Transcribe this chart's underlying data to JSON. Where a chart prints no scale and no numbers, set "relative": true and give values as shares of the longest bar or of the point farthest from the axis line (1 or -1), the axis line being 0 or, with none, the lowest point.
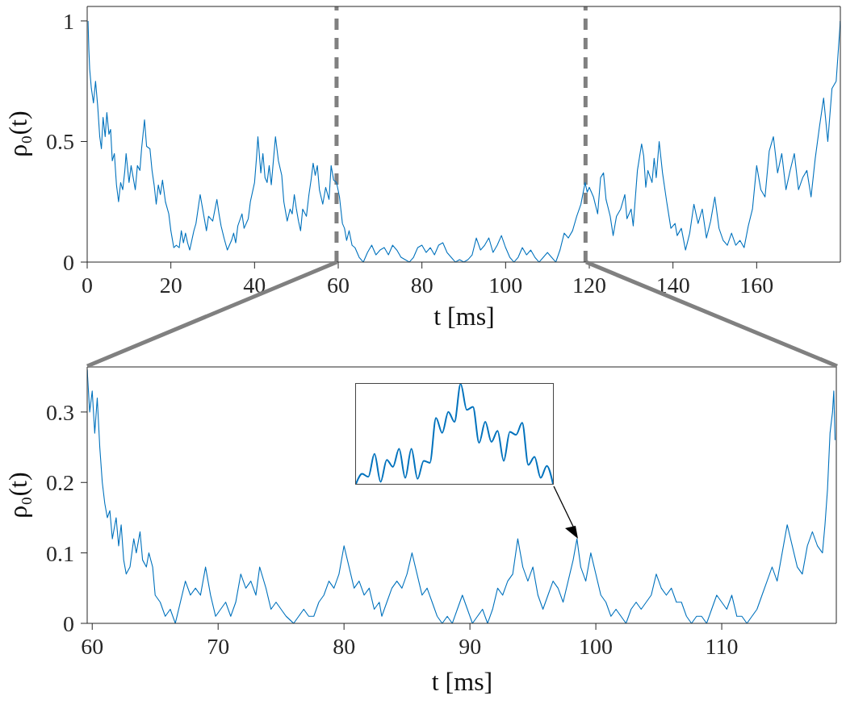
{
  "chart_data": [
    {
      "type": "line",
      "xlabel": "t [ms]",
      "ylabel": "ρ₀(t)",
      "xlim": [
        0,
        180
      ],
      "xticks": [
        0,
        20,
        40,
        60,
        80,
        100,
        120,
        140,
        160
      ],
      "ylim": [
        0,
        1.06
      ],
      "yticks": [
        0,
        0.5,
        1
      ],
      "ref_lines": [
        {
          "axis": "x",
          "value": 59.6,
          "color": "#808080",
          "line_style": "dashed"
        },
        {
          "axis": "x",
          "value": 119.1,
          "color": "#808080",
          "line_style": "dashed"
        }
      ],
      "series": [
        {
          "color": "#0072bd",
          "x": [
            0.2,
            0.4,
            0.6,
            1,
            1.5,
            2,
            2.5,
            3,
            3.4,
            3.8,
            4.3,
            4.7,
            5.2,
            5.6,
            6,
            6.5,
            7,
            7.5,
            8,
            8.5,
            9,
            9.3,
            10,
            10.5,
            11,
            11.5,
            12,
            12.6,
            13,
            13.7,
            14.2,
            15,
            15.5,
            16,
            16.5,
            17,
            17.5,
            18,
            18.7,
            19.5,
            20,
            20.7,
            21.3,
            22,
            22.5,
            23,
            23.5,
            24,
            24.5,
            25.5,
            26,
            27,
            27.6,
            28,
            28.5,
            29,
            30,
            31,
            31.5,
            32,
            32.7,
            33.5,
            34.5,
            35,
            35.5,
            36,
            37,
            37.5,
            38.5,
            39,
            40,
            40.5,
            40.8,
            41.5,
            42,
            42.5,
            43,
            43.5,
            44,
            44.5,
            45,
            45.7,
            46.5,
            47,
            47.8,
            48.5,
            49,
            49.5,
            50,
            50.5,
            51,
            51.5,
            52.4,
            53,
            53.5,
            54,
            54.5,
            55,
            55.5,
            56.3,
            57,
            57.8,
            58.3,
            58.9,
            59.6,
            60.3,
            61,
            61.5,
            62,
            62.6,
            63.3,
            64,
            65,
            66,
            67,
            68,
            69,
            70,
            71,
            72,
            73,
            74,
            75,
            76,
            77,
            78,
            79,
            80,
            81,
            82,
            83,
            84,
            85,
            86,
            87,
            88,
            89,
            90,
            91,
            92,
            93,
            94,
            95,
            96,
            97,
            98,
            99,
            100,
            101,
            102,
            103,
            104,
            105,
            106,
            107,
            108,
            109,
            110,
            111,
            112,
            113,
            114,
            115,
            116,
            117,
            118,
            119,
            119.5,
            120,
            121,
            122,
            122.7,
            123.4,
            124,
            125,
            125.7,
            126.5,
            127.5,
            128.5,
            129,
            130,
            130.5,
            131.5,
            132.5,
            133,
            133.5,
            134,
            135,
            135.5,
            136,
            136.7,
            137.5,
            138.5,
            139.5,
            140.5,
            141,
            142,
            143,
            144,
            145,
            146,
            147,
            148,
            149,
            150,
            151,
            152,
            153,
            154,
            155,
            156,
            157,
            158,
            159,
            160,
            161,
            162,
            163,
            164,
            165,
            166,
            167,
            168,
            169,
            170,
            171,
            172,
            173,
            174,
            175,
            176,
            177,
            178,
            179,
            180
          ],
          "values": [
            1.0,
            0.88,
            0.8,
            0.72,
            0.66,
            0.75,
            0.65,
            0.52,
            0.47,
            0.6,
            0.52,
            0.62,
            0.53,
            0.55,
            0.42,
            0.45,
            0.32,
            0.25,
            0.33,
            0.3,
            0.38,
            0.45,
            0.33,
            0.4,
            0.35,
            0.3,
            0.4,
            0.38,
            0.47,
            0.59,
            0.48,
            0.47,
            0.38,
            0.32,
            0.24,
            0.32,
            0.28,
            0.34,
            0.25,
            0.2,
            0.13,
            0.06,
            0.07,
            0.06,
            0.13,
            0.08,
            0.12,
            0.08,
            0.05,
            0.13,
            0.16,
            0.28,
            0.22,
            0.18,
            0.13,
            0.19,
            0.17,
            0.26,
            0.2,
            0.15,
            0.1,
            0.05,
            0.09,
            0.12,
            0.08,
            0.15,
            0.2,
            0.14,
            0.18,
            0.25,
            0.33,
            0.44,
            0.52,
            0.37,
            0.45,
            0.35,
            0.33,
            0.4,
            0.32,
            0.42,
            0.52,
            0.42,
            0.36,
            0.25,
            0.17,
            0.22,
            0.2,
            0.28,
            0.22,
            0.17,
            0.13,
            0.22,
            0.19,
            0.28,
            0.34,
            0.41,
            0.36,
            0.4,
            0.3,
            0.24,
            0.31,
            0.26,
            0.4,
            0.34,
            0.33,
            0.27,
            0.16,
            0.14,
            0.09,
            0.13,
            0.07,
            0.06,
            0.02,
            0.0,
            0.04,
            0.07,
            0.03,
            0.05,
            0.06,
            0.03,
            0.07,
            0.05,
            0.02,
            0.01,
            0.0,
            0.02,
            0.06,
            0.07,
            0.04,
            0.06,
            0.03,
            0.07,
            0.08,
            0.04,
            0.02,
            0.0,
            0.01,
            0.0,
            0.01,
            0.03,
            0.1,
            0.05,
            0.07,
            0.1,
            0.04,
            0.07,
            0.11,
            0.06,
            0.02,
            0.0,
            0.02,
            0.06,
            0.03,
            0.05,
            0.02,
            0.0,
            0.02,
            0.04,
            0.02,
            0.0,
            0.05,
            0.12,
            0.1,
            0.13,
            0.19,
            0.24,
            0.33,
            0.29,
            0.31,
            0.27,
            0.2,
            0.35,
            0.37,
            0.26,
            0.19,
            0.11,
            0.19,
            0.22,
            0.28,
            0.18,
            0.22,
            0.15,
            0.38,
            0.49,
            0.44,
            0.31,
            0.38,
            0.33,
            0.43,
            0.35,
            0.5,
            0.37,
            0.25,
            0.14,
            0.16,
            0.11,
            0.14,
            0.05,
            0.12,
            0.24,
            0.16,
            0.22,
            0.1,
            0.17,
            0.27,
            0.14,
            0.09,
            0.07,
            0.12,
            0.07,
            0.09,
            0.06,
            0.15,
            0.22,
            0.4,
            0.3,
            0.27,
            0.46,
            0.52,
            0.37,
            0.45,
            0.3,
            0.38,
            0.45,
            0.3,
            0.35,
            0.38,
            0.27,
            0.43,
            0.56,
            0.68,
            0.5,
            0.72,
            0.75,
            1.0
          ]
        }
      ]
    },
    {
      "type": "line",
      "xlabel": "t [ms]",
      "ylabel": "ρ₀(t)",
      "xlim": [
        59.6,
        119.1
      ],
      "xticks": [
        60,
        70,
        80,
        90,
        100,
        110
      ],
      "ylim": [
        0,
        0.364
      ],
      "yticks": [
        0,
        0.1,
        0.2,
        0.3
      ],
      "series": [
        {
          "color": "#0072bd",
          "x": [
            59.6,
            59.8,
            60,
            60.2,
            60.4,
            60.6,
            60.8,
            61,
            61.2,
            61.4,
            61.6,
            61.9,
            62.1,
            62.3,
            62.5,
            62.7,
            63,
            63.3,
            63.5,
            63.8,
            64,
            64.3,
            64.5,
            64.8,
            65,
            65.4,
            65.8,
            66.2,
            66.6,
            67,
            67.4,
            67.8,
            68.2,
            68.6,
            69,
            69.4,
            69.8,
            70.2,
            70.6,
            71,
            71.4,
            71.8,
            72.2,
            72.6,
            73,
            73.3,
            73.8,
            74.2,
            74.6,
            75,
            75.4,
            76,
            76.4,
            76.8,
            77.2,
            77.6,
            78,
            78.4,
            78.8,
            79.2,
            79.6,
            80,
            80.4,
            80.8,
            81.2,
            81.6,
            82,
            82.4,
            82.8,
            83,
            83.4,
            83.8,
            84.2,
            84.6,
            85,
            85.4,
            85.8,
            86.2,
            86.6,
            87,
            87.4,
            87.8,
            88.2,
            88.6,
            89,
            89.4,
            89.8,
            90.2,
            90.6,
            91,
            91.4,
            91.8,
            92.2,
            92.6,
            93,
            93.4,
            93.8,
            94.2,
            94.6,
            95,
            95.4,
            95.8,
            96.2,
            96.6,
            97,
            97.4,
            97.8,
            98.2,
            98.5,
            98.8,
            99.2,
            99.6,
            100,
            100.4,
            100.8,
            101.2,
            101.6,
            102,
            102.4,
            102.8,
            103.2,
            103.6,
            104,
            104.4,
            104.8,
            105.2,
            105.6,
            106,
            106.4,
            106.8,
            107.2,
            107.6,
            108,
            108.4,
            108.8,
            109.2,
            109.6,
            110,
            110.4,
            110.8,
            111.2,
            111.6,
            112,
            112.4,
            112.8,
            113.2,
            113.6,
            114,
            114.4,
            114.8,
            115.2,
            115.6,
            116,
            116.4,
            116.8,
            117.2,
            117.6,
            118,
            118.2,
            118.4,
            118.6,
            118.8,
            118.9,
            119
          ],
          "values": [
            0.36,
            0.3,
            0.33,
            0.27,
            0.32,
            0.25,
            0.2,
            0.17,
            0.15,
            0.16,
            0.12,
            0.15,
            0.11,
            0.14,
            0.09,
            0.07,
            0.08,
            0.12,
            0.1,
            0.13,
            0.09,
            0.08,
            0.1,
            0.08,
            0.04,
            0.03,
            0.01,
            0.02,
            0.0,
            0.03,
            0.06,
            0.04,
            0.05,
            0.04,
            0.08,
            0.04,
            0.01,
            0.02,
            0.03,
            0.01,
            0.03,
            0.07,
            0.05,
            0.06,
            0.04,
            0.08,
            0.05,
            0.02,
            0.03,
            0.02,
            0.01,
            0.0,
            0.01,
            0.02,
            0.01,
            0.01,
            0.03,
            0.04,
            0.06,
            0.05,
            0.07,
            0.11,
            0.08,
            0.05,
            0.06,
            0.04,
            0.05,
            0.02,
            0.03,
            0.01,
            0.03,
            0.05,
            0.06,
            0.05,
            0.07,
            0.1,
            0.07,
            0.04,
            0.05,
            0.03,
            0.01,
            0.0,
            0.01,
            0.0,
            0.02,
            0.04,
            0.02,
            0.0,
            0.01,
            0.02,
            0.0,
            0.02,
            0.05,
            0.04,
            0.06,
            0.07,
            0.12,
            0.08,
            0.06,
            0.08,
            0.04,
            0.02,
            0.04,
            0.06,
            0.05,
            0.03,
            0.06,
            0.09,
            0.12,
            0.08,
            0.06,
            0.1,
            0.07,
            0.04,
            0.03,
            0.01,
            0.02,
            0.01,
            0.0,
            0.02,
            0.03,
            0.02,
            0.03,
            0.04,
            0.07,
            0.05,
            0.04,
            0.05,
            0.03,
            0.03,
            0.01,
            0.0,
            0.01,
            0.01,
            0.0,
            0.02,
            0.04,
            0.03,
            0.02,
            0.04,
            0.01,
            0.01,
            0.0,
            0.01,
            0.02,
            0.04,
            0.06,
            0.08,
            0.06,
            0.1,
            0.14,
            0.11,
            0.08,
            0.07,
            0.11,
            0.13,
            0.11,
            0.1,
            0.14,
            0.19,
            0.27,
            0.3,
            0.33,
            0.26
          ]
        }
      ]
    },
    {
      "type": "line",
      "relative": true,
      "categories": [
        null,
        null,
        null,
        null,
        null,
        null,
        null,
        null,
        null,
        null,
        null,
        null,
        null,
        null,
        null,
        null,
        null,
        null,
        null,
        null,
        null,
        null,
        null,
        null,
        null,
        null,
        null,
        null,
        null,
        null,
        null,
        null,
        null
      ],
      "series": [
        {
          "color": "#0072bd",
          "values": [
            0,
            0.1,
            0.07,
            0.3,
            0.02,
            0.24,
            0.17,
            0.35,
            0.06,
            0.35,
            0.05,
            0.23,
            0.21,
            0.66,
            0.51,
            0.72,
            0.62,
            1,
            0.74,
            0.77,
            0.41,
            0.62,
            0.42,
            0.53,
            0.23,
            0.52,
            0.49,
            0.61,
            0.19,
            0.27,
            0.06,
            0.18,
            0
          ]
        }
      ]
    }
  ]
}
